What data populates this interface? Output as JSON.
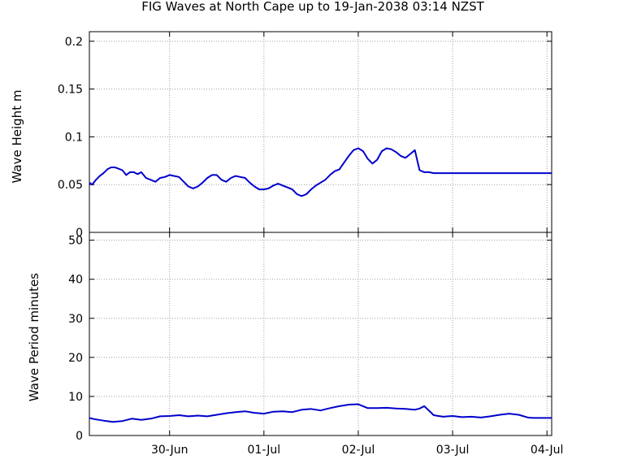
{
  "title": "FIG Waves at North Cape up to 19-Jan-2038 03:14 NZST",
  "colors": {
    "series": "#0000cc",
    "grid": "#a0a0a0",
    "frame": "#000000",
    "background": "#ffffff"
  },
  "chart_data": [
    {
      "type": "line",
      "ylabel": "Wave Height m",
      "ylim": [
        0,
        0.21
      ],
      "yticks": [
        0,
        0.05,
        0.1,
        0.15,
        0.2
      ],
      "ytick_labels": [
        "0",
        "0.05",
        "0.1",
        "0.15",
        "0.2"
      ],
      "xlim": [
        -0.85,
        4.05
      ],
      "xticks": [
        0,
        1,
        2,
        3,
        4
      ],
      "grid": true,
      "series": [
        {
          "x": [
            -0.85,
            -0.82,
            -0.78,
            -0.74,
            -0.7,
            -0.66,
            -0.62,
            -0.58,
            -0.55,
            -0.5,
            -0.46,
            -0.42,
            -0.38,
            -0.34,
            -0.3,
            -0.25,
            -0.2,
            -0.15,
            -0.1,
            -0.05,
            0.0,
            0.05,
            0.1,
            0.15,
            0.2,
            0.25,
            0.3,
            0.35,
            0.4,
            0.45,
            0.5,
            0.55,
            0.6,
            0.65,
            0.7,
            0.75,
            0.8,
            0.85,
            0.9,
            0.95,
            1.0,
            1.05,
            1.1,
            1.15,
            1.2,
            1.25,
            1.3,
            1.35,
            1.4,
            1.45,
            1.5,
            1.55,
            1.6,
            1.65,
            1.7,
            1.75,
            1.8,
            1.85,
            1.9,
            1.95,
            2.0,
            2.05,
            2.1,
            2.15,
            2.2,
            2.25,
            2.3,
            2.35,
            2.4,
            2.45,
            2.5,
            2.55,
            2.6,
            2.65,
            2.7,
            2.75,
            2.8,
            2.85,
            2.9,
            2.95,
            3.0,
            3.05,
            3.1,
            3.15,
            3.2,
            3.25,
            3.3,
            3.35,
            3.4,
            3.45,
            3.5,
            3.55,
            3.6,
            3.65,
            3.7,
            3.75,
            3.8,
            3.85,
            3.88,
            3.9,
            3.95,
            4.0,
            4.05
          ],
          "values": [
            0.052,
            0.05,
            0.055,
            0.059,
            0.062,
            0.066,
            0.068,
            0.068,
            0.067,
            0.065,
            0.06,
            0.063,
            0.063,
            0.061,
            0.063,
            0.057,
            0.055,
            0.053,
            0.057,
            0.058,
            0.06,
            0.059,
            0.058,
            0.053,
            0.048,
            0.046,
            0.048,
            0.052,
            0.057,
            0.06,
            0.06,
            0.055,
            0.053,
            0.057,
            0.059,
            0.058,
            0.057,
            0.052,
            0.048,
            0.045,
            0.045,
            0.046,
            0.049,
            0.051,
            0.049,
            0.047,
            0.045,
            0.04,
            0.038,
            0.04,
            0.045,
            0.049,
            0.052,
            0.055,
            0.06,
            0.064,
            0.066,
            0.073,
            0.08,
            0.086,
            0.088,
            0.085,
            0.077,
            0.072,
            0.076,
            0.085,
            0.088,
            0.087,
            0.084,
            0.08,
            0.078,
            0.082,
            0.086,
            0.065,
            0.063,
            0.063,
            0.062,
            0.062,
            0.062,
            0.062,
            0.062,
            0.062,
            0.062,
            0.062,
            0.062,
            0.062,
            0.062,
            0.062,
            0.062,
            0.062,
            0.062,
            0.062,
            0.062,
            0.062,
            0.062,
            0.062,
            0.062,
            0.062,
            0.062,
            0.062,
            0.062,
            0.062,
            0.062
          ]
        }
      ]
    },
    {
      "type": "line",
      "ylabel": "Wave Period minutes",
      "ylim": [
        0,
        52
      ],
      "yticks": [
        0,
        10,
        20,
        30,
        40,
        50
      ],
      "ytick_labels": [
        "0",
        "10",
        "20",
        "30",
        "40",
        "50"
      ],
      "xlim": [
        -0.85,
        4.05
      ],
      "xticks": [
        0,
        1,
        2,
        3,
        4
      ],
      "xtick_labels": [
        "30-Jun",
        "01-Jul",
        "02-Jul",
        "03-Jul",
        "04-Jul"
      ],
      "grid": true,
      "series": [
        {
          "x": [
            -0.85,
            -0.8,
            -0.7,
            -0.6,
            -0.5,
            -0.4,
            -0.3,
            -0.2,
            -0.1,
            0.0,
            0.1,
            0.2,
            0.3,
            0.4,
            0.5,
            0.6,
            0.7,
            0.8,
            0.9,
            1.0,
            1.1,
            1.2,
            1.3,
            1.4,
            1.5,
            1.6,
            1.7,
            1.8,
            1.9,
            2.0,
            2.05,
            2.1,
            2.15,
            2.2,
            2.3,
            2.4,
            2.5,
            2.6,
            2.65,
            2.7,
            2.8,
            2.85,
            2.9,
            2.95,
            3.0,
            3.1,
            3.2,
            3.3,
            3.4,
            3.5,
            3.6,
            3.7,
            3.8,
            3.85,
            3.9,
            4.0,
            4.05
          ],
          "values": [
            4.5,
            4.2,
            3.8,
            3.5,
            3.7,
            4.3,
            4.0,
            4.3,
            4.9,
            5.0,
            5.2,
            4.9,
            5.1,
            4.9,
            5.3,
            5.7,
            6.0,
            6.2,
            5.8,
            5.6,
            6.1,
            6.2,
            6.0,
            6.6,
            6.8,
            6.4,
            7.0,
            7.5,
            7.9,
            8.0,
            7.5,
            7.0,
            7.0,
            7.0,
            7.1,
            6.9,
            6.8,
            6.6,
            6.9,
            7.5,
            5.2,
            5.0,
            4.8,
            4.9,
            5.0,
            4.7,
            4.8,
            4.6,
            4.9,
            5.3,
            5.6,
            5.3,
            4.6,
            4.5,
            4.5,
            4.5,
            4.5
          ]
        }
      ]
    }
  ]
}
